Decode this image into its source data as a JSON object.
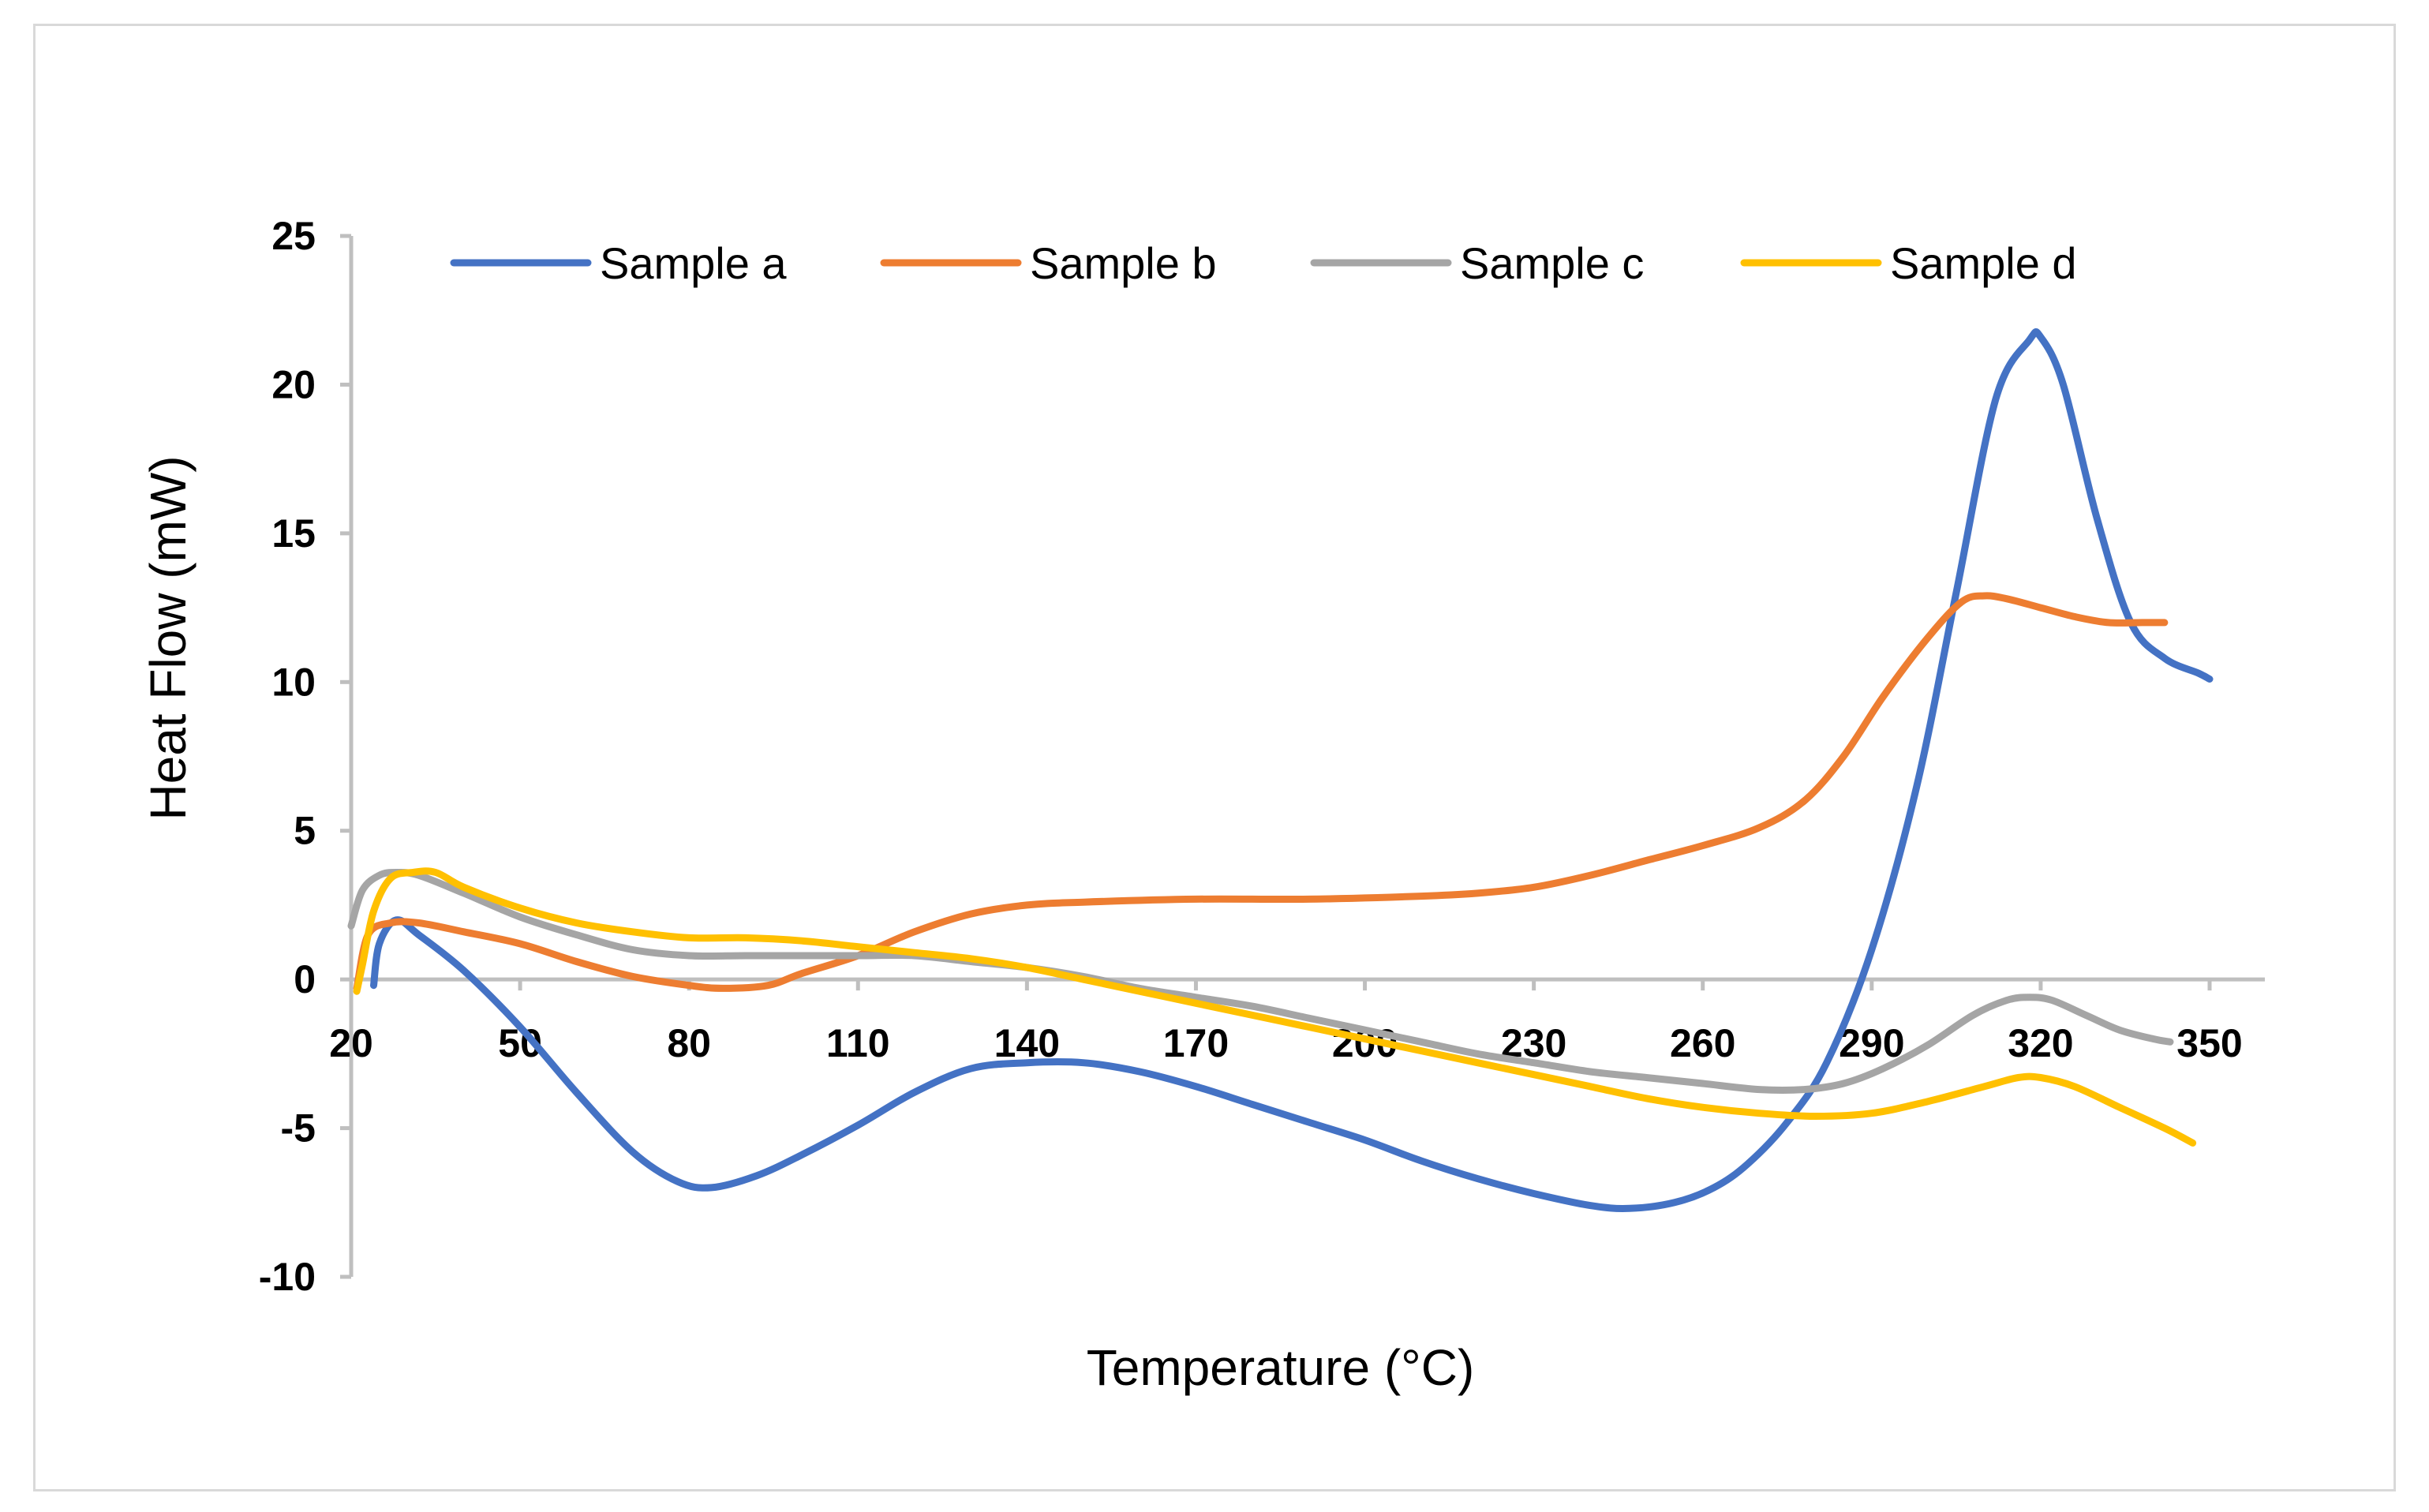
{
  "chart_data": {
    "type": "line",
    "title": "",
    "xlabel": "Temperature (°C)",
    "ylabel": "Heat Flow (mW)",
    "xlim": [
      20,
      350
    ],
    "ylim": [
      -10,
      25
    ],
    "x_ticks": [
      "20",
      "50",
      "80",
      "110",
      "140",
      "170",
      "200",
      "230",
      "260",
      "290",
      "320",
      "350"
    ],
    "y_ticks": [
      "25",
      "20",
      "15",
      "10",
      "5",
      "0",
      "-5",
      "-10"
    ],
    "x_tick_values": [
      20,
      50,
      80,
      110,
      140,
      170,
      200,
      230,
      260,
      290,
      320,
      350
    ],
    "y_tick_values": [
      25,
      20,
      15,
      10,
      5,
      0,
      -5,
      -10
    ],
    "legend_position": "top",
    "grid": false,
    "series": [
      {
        "name": "Sample a",
        "color": "#4472c4",
        "points": [
          [
            24,
            -0.2
          ],
          [
            25,
            1.2
          ],
          [
            28,
            2.0
          ],
          [
            32,
            1.5
          ],
          [
            40,
            0.3
          ],
          [
            50,
            -1.6
          ],
          [
            60,
            -3.8
          ],
          [
            70,
            -5.8
          ],
          [
            78,
            -6.8
          ],
          [
            84,
            -7.0
          ],
          [
            92,
            -6.6
          ],
          [
            100,
            -5.9
          ],
          [
            110,
            -4.9
          ],
          [
            120,
            -3.8
          ],
          [
            130,
            -3.0
          ],
          [
            140,
            -2.8
          ],
          [
            150,
            -2.8
          ],
          [
            160,
            -3.1
          ],
          [
            170,
            -3.6
          ],
          [
            180,
            -4.2
          ],
          [
            190,
            -4.8
          ],
          [
            200,
            -5.4
          ],
          [
            210,
            -6.1
          ],
          [
            220,
            -6.7
          ],
          [
            230,
            -7.2
          ],
          [
            240,
            -7.6
          ],
          [
            247,
            -7.7
          ],
          [
            255,
            -7.5
          ],
          [
            262,
            -7.0
          ],
          [
            268,
            -6.2
          ],
          [
            275,
            -4.8
          ],
          [
            282,
            -2.8
          ],
          [
            290,
            1.0
          ],
          [
            298,
            6.5
          ],
          [
            305,
            13.0
          ],
          [
            312,
            19.5
          ],
          [
            318,
            21.5
          ],
          [
            320,
            21.6
          ],
          [
            324,
            20.0
          ],
          [
            330,
            15.5
          ],
          [
            336,
            12.0
          ],
          [
            342,
            10.8
          ],
          [
            348,
            10.3
          ],
          [
            350,
            10.1
          ]
        ]
      },
      {
        "name": "Sample b",
        "color": "#ed7d31",
        "points": [
          [
            21,
            -0.3
          ],
          [
            23,
            1.5
          ],
          [
            27,
            1.9
          ],
          [
            32,
            1.9
          ],
          [
            40,
            1.6
          ],
          [
            50,
            1.2
          ],
          [
            60,
            0.6
          ],
          [
            70,
            0.1
          ],
          [
            80,
            -0.2
          ],
          [
            86,
            -0.3
          ],
          [
            94,
            -0.2
          ],
          [
            100,
            0.2
          ],
          [
            110,
            0.8
          ],
          [
            120,
            1.6
          ],
          [
            130,
            2.2
          ],
          [
            140,
            2.5
          ],
          [
            150,
            2.6
          ],
          [
            170,
            2.7
          ],
          [
            190,
            2.7
          ],
          [
            210,
            2.8
          ],
          [
            220,
            2.9
          ],
          [
            230,
            3.1
          ],
          [
            240,
            3.5
          ],
          [
            250,
            4.0
          ],
          [
            260,
            4.5
          ],
          [
            270,
            5.1
          ],
          [
            278,
            6.0
          ],
          [
            285,
            7.5
          ],
          [
            292,
            9.5
          ],
          [
            300,
            11.5
          ],
          [
            306,
            12.7
          ],
          [
            310,
            12.9
          ],
          [
            314,
            12.8
          ],
          [
            320,
            12.5
          ],
          [
            326,
            12.2
          ],
          [
            332,
            12.0
          ],
          [
            338,
            12.0
          ],
          [
            342,
            12.0
          ]
        ]
      },
      {
        "name": "Sample c",
        "color": "#a5a5a5",
        "points": [
          [
            20,
            1.8
          ],
          [
            22,
            3.0
          ],
          [
            25,
            3.5
          ],
          [
            28,
            3.6
          ],
          [
            32,
            3.5
          ],
          [
            40,
            2.9
          ],
          [
            50,
            2.1
          ],
          [
            60,
            1.5
          ],
          [
            70,
            1.0
          ],
          [
            80,
            0.8
          ],
          [
            90,
            0.8
          ],
          [
            100,
            0.8
          ],
          [
            110,
            0.8
          ],
          [
            120,
            0.8
          ],
          [
            130,
            0.6
          ],
          [
            140,
            0.4
          ],
          [
            150,
            0.1
          ],
          [
            160,
            -0.3
          ],
          [
            170,
            -0.6
          ],
          [
            180,
            -0.9
          ],
          [
            190,
            -1.3
          ],
          [
            200,
            -1.7
          ],
          [
            210,
            -2.1
          ],
          [
            220,
            -2.5
          ],
          [
            230,
            -2.8
          ],
          [
            240,
            -3.1
          ],
          [
            250,
            -3.3
          ],
          [
            260,
            -3.5
          ],
          [
            270,
            -3.7
          ],
          [
            278,
            -3.7
          ],
          [
            285,
            -3.5
          ],
          [
            292,
            -3.0
          ],
          [
            300,
            -2.2
          ],
          [
            308,
            -1.2
          ],
          [
            314,
            -0.7
          ],
          [
            318,
            -0.6
          ],
          [
            322,
            -0.7
          ],
          [
            328,
            -1.2
          ],
          [
            334,
            -1.7
          ],
          [
            340,
            -2.0
          ],
          [
            343,
            -2.1
          ]
        ]
      },
      {
        "name": "Sample d",
        "color": "#ffc000",
        "points": [
          [
            21,
            -0.4
          ],
          [
            22,
            0.5
          ],
          [
            24,
            2.3
          ],
          [
            27,
            3.4
          ],
          [
            31,
            3.6
          ],
          [
            35,
            3.6
          ],
          [
            40,
            3.1
          ],
          [
            50,
            2.4
          ],
          [
            60,
            1.9
          ],
          [
            70,
            1.6
          ],
          [
            80,
            1.4
          ],
          [
            90,
            1.4
          ],
          [
            100,
            1.3
          ],
          [
            110,
            1.1
          ],
          [
            120,
            0.9
          ],
          [
            130,
            0.7
          ],
          [
            140,
            0.4
          ],
          [
            150,
            0.0
          ],
          [
            160,
            -0.4
          ],
          [
            170,
            -0.8
          ],
          [
            180,
            -1.2
          ],
          [
            190,
            -1.6
          ],
          [
            200,
            -2.0
          ],
          [
            210,
            -2.4
          ],
          [
            220,
            -2.8
          ],
          [
            230,
            -3.2
          ],
          [
            240,
            -3.6
          ],
          [
            250,
            -4.0
          ],
          [
            260,
            -4.3
          ],
          [
            270,
            -4.5
          ],
          [
            280,
            -4.6
          ],
          [
            290,
            -4.5
          ],
          [
            300,
            -4.1
          ],
          [
            310,
            -3.6
          ],
          [
            316,
            -3.3
          ],
          [
            320,
            -3.3
          ],
          [
            326,
            -3.6
          ],
          [
            334,
            -4.3
          ],
          [
            342,
            -5.0
          ],
          [
            347,
            -5.5
          ]
        ]
      }
    ]
  }
}
